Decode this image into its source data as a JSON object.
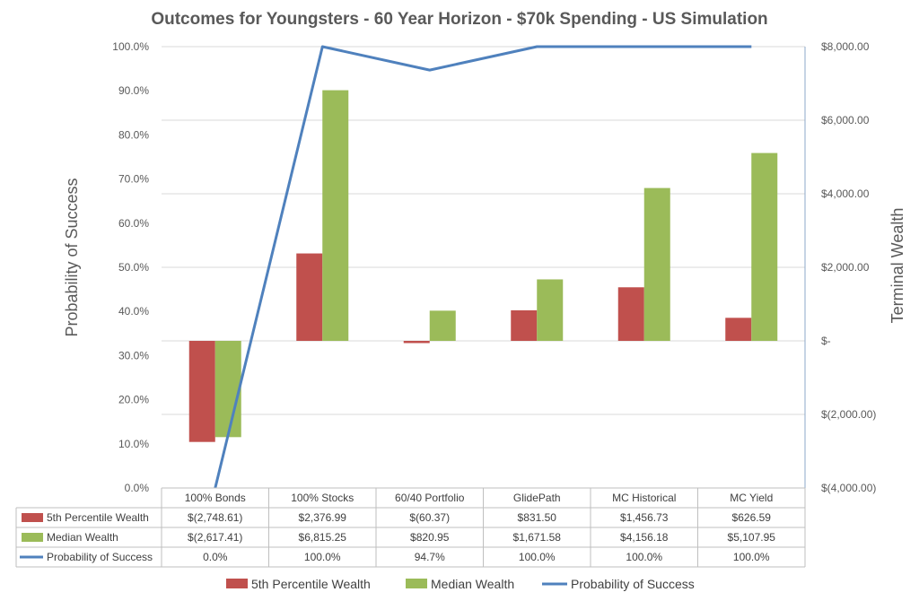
{
  "chart_data": {
    "type": "bar",
    "title": "Outcomes for Youngsters - 60 Year Horizon - $70k Spending - US Simulation",
    "xlabel": "",
    "ylabel": "Probability of Success",
    "y2label": "Terminal Wealth",
    "categories": [
      "100% Bonds",
      "100% Stocks",
      "60/40 Portfolio",
      "GlidePath",
      "MC Historical",
      "MC Yield"
    ],
    "series": [
      {
        "name": "5th Percentile Wealth",
        "kind": "bar",
        "axis": "right",
        "color": "#c0504d",
        "values": [
          -2748.61,
          2376.99,
          -60.37,
          831.5,
          1456.73,
          626.59
        ],
        "labels": [
          "$(2,748.61)",
          "$2,376.99",
          "$(60.37)",
          "$831.50",
          "$1,456.73",
          "$626.59"
        ]
      },
      {
        "name": "Median Wealth",
        "kind": "bar",
        "axis": "right",
        "color": "#9bbb59",
        "values": [
          -2617.41,
          6815.25,
          820.95,
          1671.58,
          4156.18,
          5107.95
        ],
        "labels": [
          "$(2,617.41)",
          "$6,815.25",
          "$820.95",
          "$1,671.58",
          "$4,156.18",
          "$5,107.95"
        ]
      },
      {
        "name": "Probability of Success",
        "kind": "line",
        "axis": "left",
        "color": "#4f81bd",
        "values": [
          0.0,
          100.0,
          94.7,
          100.0,
          100.0,
          100.0
        ],
        "labels": [
          "0.0%",
          "100.0%",
          "94.7%",
          "100.0%",
          "100.0%",
          "100.0%"
        ]
      }
    ],
    "ylim": [
      0,
      100
    ],
    "y_ticks": [
      "0.0%",
      "10.0%",
      "20.0%",
      "30.0%",
      "40.0%",
      "50.0%",
      "60.0%",
      "70.0%",
      "80.0%",
      "90.0%",
      "100.0%"
    ],
    "y2lim": [
      -4000,
      8000
    ],
    "y2_ticks": [
      "$(4,000.00)",
      "$(2,000.00)",
      "$-",
      "$2,000.00",
      "$4,000.00",
      "$6,000.00",
      "$8,000.00"
    ],
    "grid": true,
    "legend": "bottom",
    "data_table": true
  }
}
